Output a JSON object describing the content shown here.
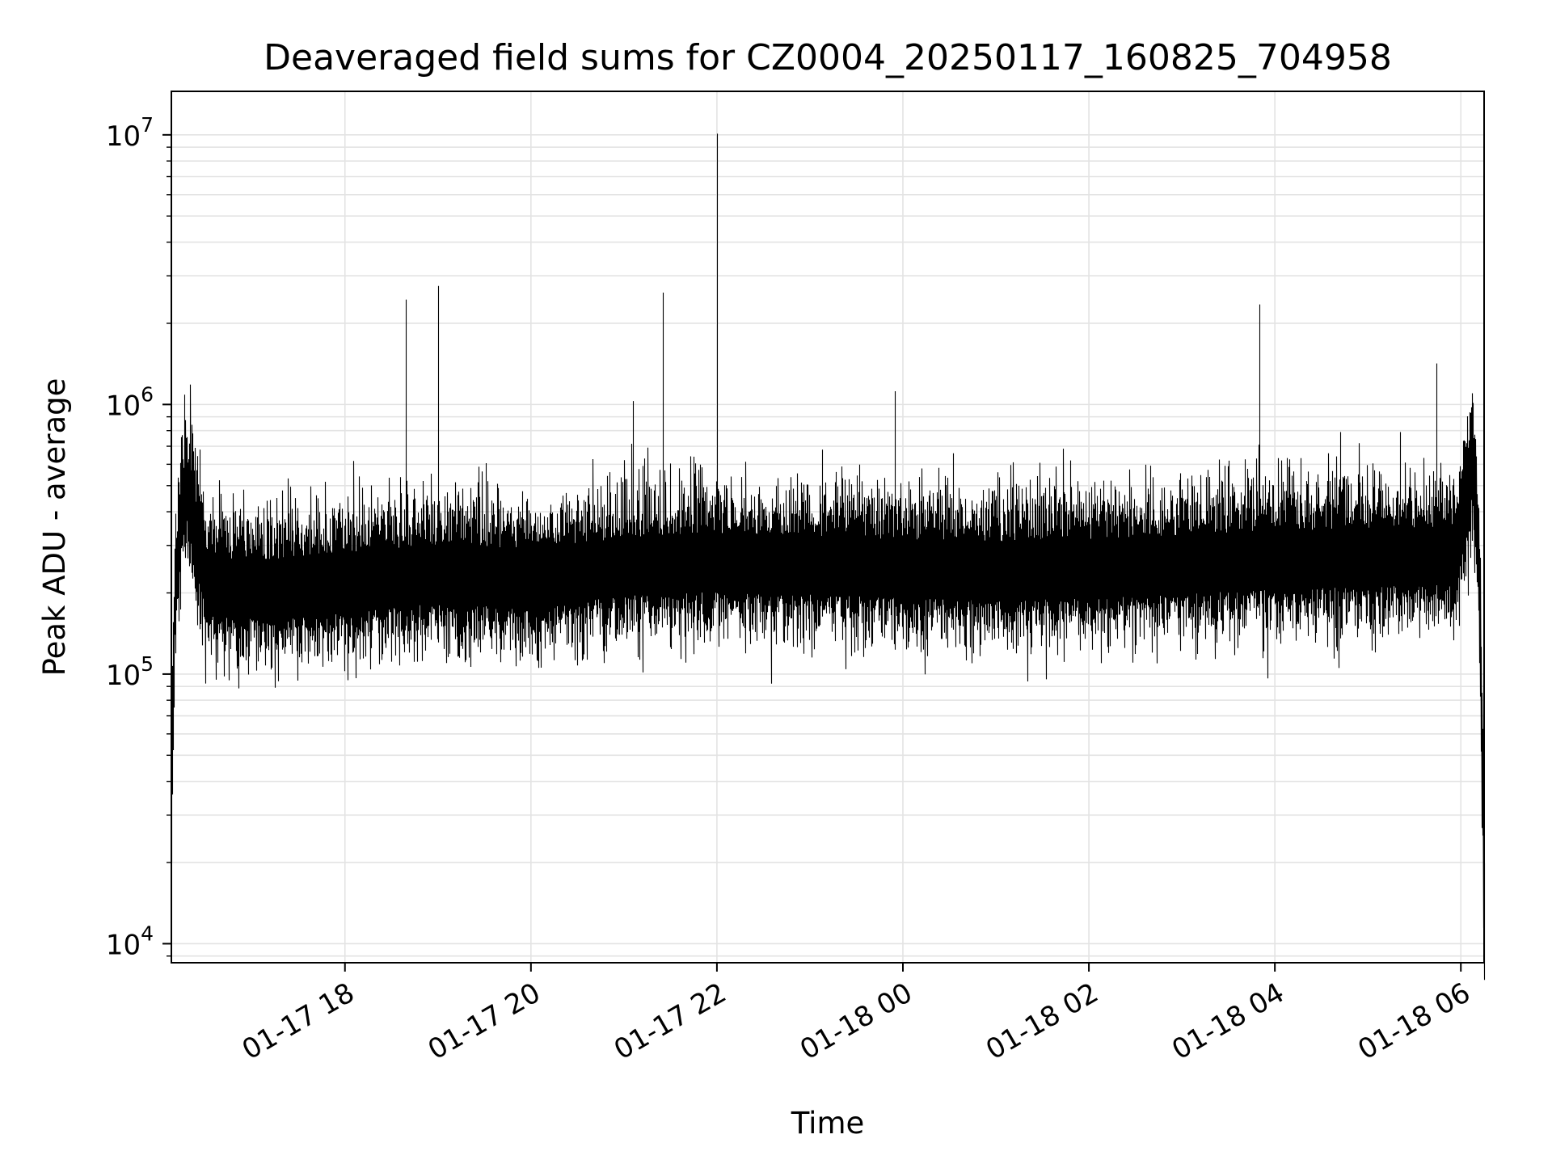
{
  "chart_data": {
    "type": "line",
    "title": "Deaveraged field sums for CZ0004_20250117_160825_704958",
    "xlabel": "Time",
    "ylabel": "Peak ADU - average",
    "xscale": "time",
    "yscale": "log",
    "xlim": [
      "2025-01-17 16:08",
      "2025-01-18 06:15"
    ],
    "ylim": [
      8500,
      14500000
    ],
    "grid": true,
    "x_ticks": [
      {
        "t": "2025-01-17 18:00",
        "label": "01-17 18"
      },
      {
        "t": "2025-01-17 20:00",
        "label": "01-17 20"
      },
      {
        "t": "2025-01-17 22:00",
        "label": "01-17 22"
      },
      {
        "t": "2025-01-18 00:00",
        "label": "01-18 00"
      },
      {
        "t": "2025-01-18 02:00",
        "label": "01-18 02"
      },
      {
        "t": "2025-01-18 04:00",
        "label": "01-18 04"
      },
      {
        "t": "2025-01-18 06:00",
        "label": "01-18 06"
      }
    ],
    "y_ticks": [
      {
        "value": 10000,
        "base": "10",
        "exp": "4"
      },
      {
        "value": 100000,
        "base": "10",
        "exp": "5"
      },
      {
        "value": 1000000,
        "base": "10",
        "exp": "6"
      },
      {
        "value": 10000000,
        "base": "10",
        "exp": "7"
      }
    ],
    "series": [
      {
        "color": "#000000",
        "baseline": [
          [
            "2025-01-17 16:08",
            30000
          ],
          [
            "2025-01-17 16:10",
            180000
          ],
          [
            "2025-01-17 16:14",
            380000
          ],
          [
            "2025-01-17 16:18",
            480000
          ],
          [
            "2025-01-17 16:24",
            330000
          ],
          [
            "2025-01-17 16:32",
            210000
          ],
          [
            "2025-01-17 17:00",
            205000
          ],
          [
            "2025-01-17 18:00",
            215000
          ],
          [
            "2025-01-17 19:00",
            235000
          ],
          [
            "2025-01-17 20:00",
            225000
          ],
          [
            "2025-01-17 21:00",
            250000
          ],
          [
            "2025-01-17 22:00",
            260000
          ],
          [
            "2025-01-17 23:00",
            255000
          ],
          [
            "2025-01-18 00:00",
            245000
          ],
          [
            "2025-01-18 01:00",
            240000
          ],
          [
            "2025-01-18 02:00",
            245000
          ],
          [
            "2025-01-18 03:00",
            255000
          ],
          [
            "2025-01-18 04:00",
            265000
          ],
          [
            "2025-01-18 05:00",
            270000
          ],
          [
            "2025-01-18 05:55",
            275000
          ],
          [
            "2025-01-18 06:04",
            420000
          ],
          [
            "2025-01-18 06:07",
            620000
          ],
          [
            "2025-01-18 06:11",
            300000
          ],
          [
            "2025-01-18 06:13",
            80000
          ],
          [
            "2025-01-18 06:15",
            14000
          ]
        ],
        "spikes": [
          [
            "2025-01-17 16:26",
            680000
          ],
          [
            "2025-01-17 18:39",
            2450000
          ],
          [
            "2025-01-17 19:00",
            2750000
          ],
          [
            "2025-01-17 21:06",
            1030000
          ],
          [
            "2025-01-17 21:13",
            630000
          ],
          [
            "2025-01-17 21:25",
            2600000
          ],
          [
            "2025-01-17 21:45",
            640000
          ],
          [
            "2025-01-17 22:00",
            10100000
          ],
          [
            "2025-01-17 23:08",
            680000
          ],
          [
            "2025-01-17 23:55",
            1120000
          ],
          [
            "2025-01-18 03:50",
            2350000
          ],
          [
            "2025-01-18 04:42",
            790000
          ],
          [
            "2025-01-18 05:21",
            790000
          ],
          [
            "2025-01-18 05:44",
            1420000
          ],
          [
            "2025-01-18 06:08",
            750000
          ]
        ],
        "noise_decades": 0.12
      }
    ]
  }
}
